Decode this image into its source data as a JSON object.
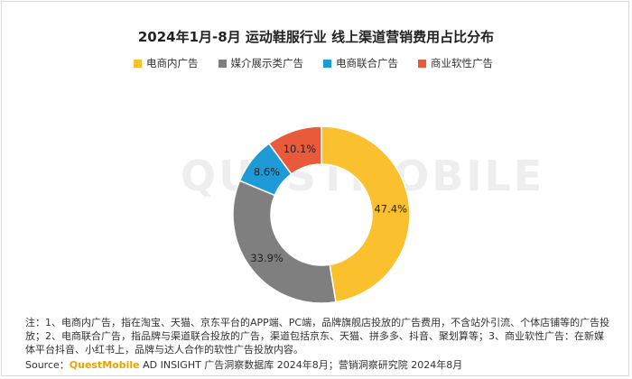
{
  "title": "2024年1月-8月 运动鞋服行业 线上渠道营销费用占比分布",
  "watermark": "QUESTMOBILE",
  "chart_data": {
    "type": "pie",
    "donut": true,
    "legend_position": "top",
    "categories": [
      "电商内广告",
      "媒介展示类广告",
      "电商联合广告",
      "商业软性广告"
    ],
    "values": [
      47.4,
      33.9,
      8.6,
      10.1
    ],
    "labels": [
      "47.4%",
      "33.9%",
      "8.6%",
      "10.1%"
    ],
    "colors": [
      "#fbc02d",
      "#7f7f7f",
      "#1e9ad6",
      "#e85a3a"
    ]
  },
  "notes": "注：1、电商内广告，指在淘宝、天猫、京东平台的APP端、PC端，品牌旗舰店投放的广告费用，不含站外引流、个体店铺等的广告投放；2、电商联合广告，指品牌与渠道联合投放的广告，渠道包括京东、天猫、拼多多、抖音、聚划算等；3、商业软性广告：在新媒体平台抖音、小红书上，品牌与达人合作的软性广告投放内容。",
  "source": {
    "prefix": "Source：",
    "brand": "QuestMobile",
    "rest": " AD INSIGHT 广告洞察数据库 2024年8月；营销洞察研究院 2024年8月"
  }
}
